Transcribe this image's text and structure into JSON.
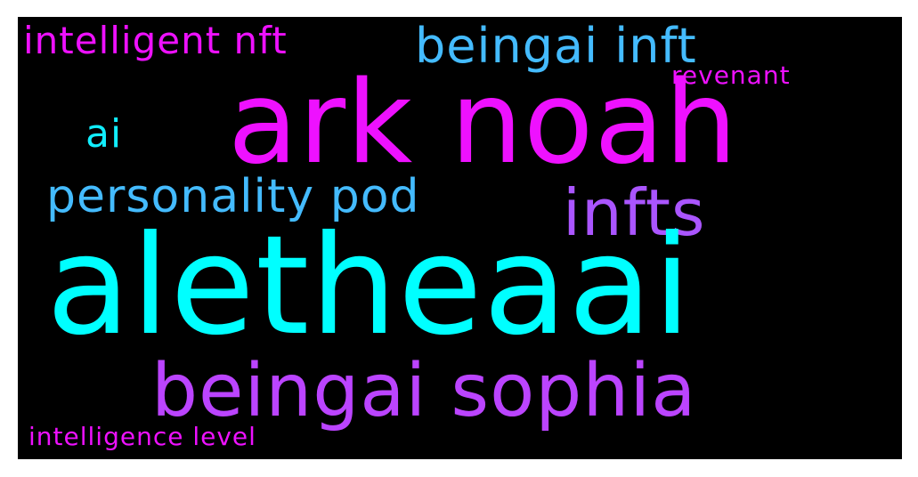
{
  "words": {
    "aletheaai": {
      "text": "aletheaai",
      "color": "#00ffff"
    },
    "ark_noah": {
      "text": "ark noah",
      "color": "#ee11ff"
    },
    "beingai_sophia": {
      "text": "beingai sophia",
      "color": "#bb44ff"
    },
    "infts": {
      "text": "infts",
      "color": "#aa55ff"
    },
    "beingai_inft": {
      "text": "beingai inft",
      "color": "#44bbff"
    },
    "personality_pod": {
      "text": "personality pod",
      "color": "#44bbff"
    },
    "intelligent_nft": {
      "text": "intelligent nft",
      "color": "#ee11ff"
    },
    "ai": {
      "text": "ai",
      "color": "#11eeff"
    },
    "revenant": {
      "text": "revenant",
      "color": "#ee11ff"
    },
    "intelligence_level": {
      "text": "intelligence level",
      "color": "#ee11ff"
    }
  }
}
